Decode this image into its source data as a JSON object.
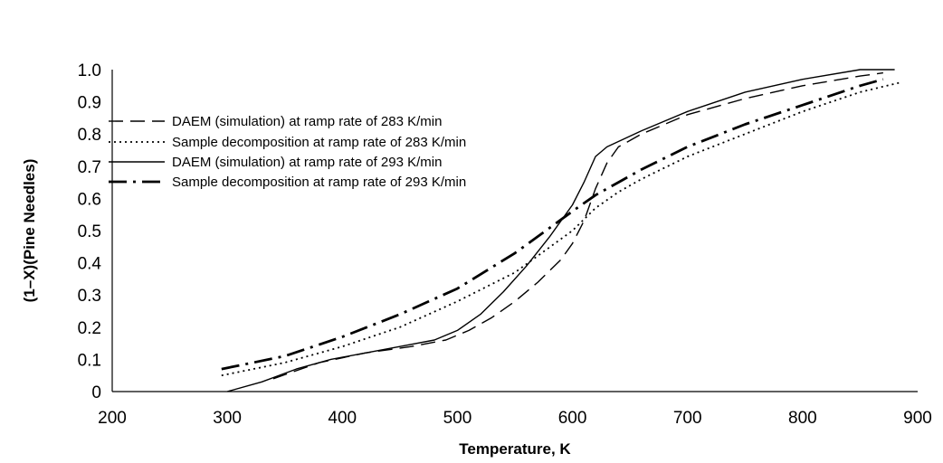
{
  "chart_data": {
    "type": "line",
    "title": "",
    "xlabel": "Temperature, K",
    "ylabel": "(1–X)(Pine Needles)",
    "xlim": [
      200,
      900
    ],
    "ylim": [
      0,
      1.0
    ],
    "x_ticks": [
      "200",
      "300",
      "400",
      "500",
      "600",
      "700",
      "800",
      "900"
    ],
    "y_ticks": [
      "0",
      "0.1",
      "0.2",
      "0.3",
      "0.4",
      "0.5",
      "0.6",
      "0.7",
      "0.8",
      "0.9",
      "1.0"
    ],
    "grid": false,
    "legend_position": "top-left",
    "series": [
      {
        "name": "DAEM (simulation) at ramp rate of 283 K/min",
        "line_style": "long-dash",
        "color": "#000000",
        "x": [
          340,
          380,
          420,
          460,
          490,
          510,
          530,
          550,
          570,
          590,
          600,
          610,
          620,
          630,
          640,
          660,
          700,
          750,
          800,
          850,
          870
        ],
        "y": [
          0.04,
          0.09,
          0.12,
          0.14,
          0.16,
          0.19,
          0.23,
          0.28,
          0.34,
          0.41,
          0.46,
          0.53,
          0.63,
          0.71,
          0.76,
          0.8,
          0.86,
          0.91,
          0.95,
          0.98,
          0.99
        ]
      },
      {
        "name": "Sample decomposition at ramp rate of 283 K/min",
        "line_style": "dotted",
        "color": "#000000",
        "x": [
          295,
          350,
          400,
          450,
          500,
          550,
          600,
          620,
          640,
          660,
          700,
          750,
          800,
          850,
          885
        ],
        "y": [
          0.05,
          0.09,
          0.14,
          0.2,
          0.28,
          0.37,
          0.5,
          0.57,
          0.62,
          0.66,
          0.73,
          0.8,
          0.87,
          0.93,
          0.96
        ]
      },
      {
        "name": "DAEM (simulation) at ramp rate of 293 K/min",
        "line_style": "solid",
        "color": "#000000",
        "x": [
          300,
          330,
          360,
          390,
          420,
          450,
          480,
          500,
          520,
          540,
          560,
          580,
          600,
          610,
          620,
          630,
          660,
          700,
          750,
          800,
          850,
          880
        ],
        "y": [
          0.0,
          0.03,
          0.07,
          0.1,
          0.12,
          0.14,
          0.16,
          0.19,
          0.24,
          0.31,
          0.39,
          0.48,
          0.58,
          0.65,
          0.73,
          0.76,
          0.81,
          0.87,
          0.93,
          0.97,
          1.0,
          1.0
        ]
      },
      {
        "name": "Sample decomposition at ramp rate of 293 K/min",
        "line_style": "dash-dot",
        "color": "#000000",
        "x": [
          295,
          350,
          400,
          450,
          500,
          550,
          600,
          620,
          640,
          660,
          700,
          750,
          800,
          850,
          870
        ],
        "y": [
          0.07,
          0.11,
          0.17,
          0.24,
          0.32,
          0.43,
          0.56,
          0.61,
          0.65,
          0.69,
          0.76,
          0.83,
          0.89,
          0.95,
          0.97
        ]
      }
    ]
  }
}
